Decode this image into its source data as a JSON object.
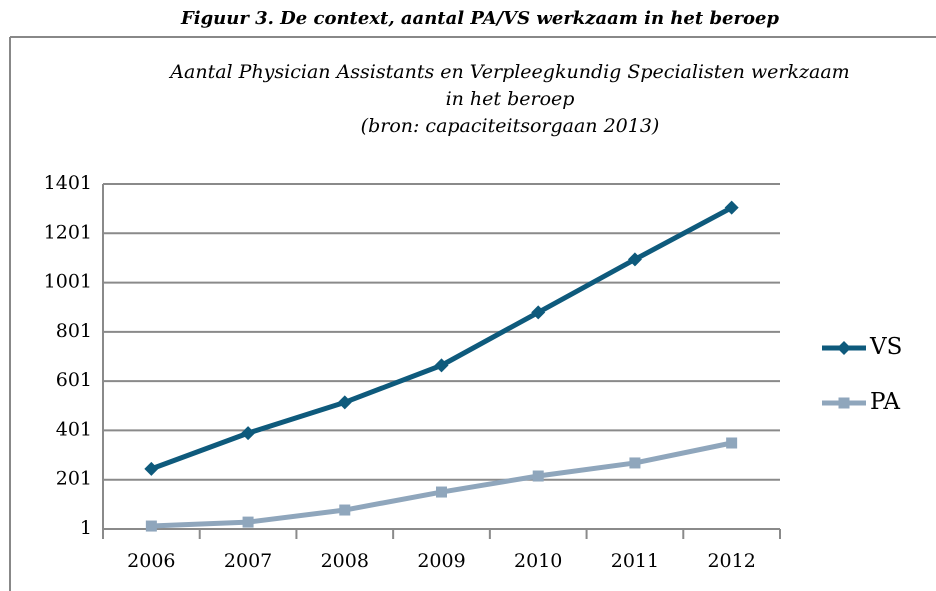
{
  "caption": "Figuur 3. De context, aantal PA/VS werkzaam in het beroep",
  "chart_data": {
    "type": "line",
    "title": [
      "Aantal Physician Assistants en Verpleegkundig Specialisten werkzaam",
      "in het beroep"
    ],
    "subtitle": "(bron: capaciteitsorgaan 2013)",
    "categories": [
      "2006",
      "2007",
      "2008",
      "2009",
      "2010",
      "2011",
      "2012"
    ],
    "series": [
      {
        "name": "VS",
        "color": "#0e5a7c",
        "marker": "diamond",
        "values": [
          245,
          390,
          515,
          665,
          880,
          1095,
          1305
        ]
      },
      {
        "name": "PA",
        "color": "#8fa6bc",
        "marker": "square",
        "values": [
          13,
          29,
          78,
          151,
          216,
          269,
          350
        ]
      }
    ],
    "ylim": [
      1,
      1401
    ],
    "yticks": [
      1,
      201,
      401,
      601,
      801,
      1001,
      1201,
      1401
    ],
    "grid": true,
    "legend": "right"
  }
}
